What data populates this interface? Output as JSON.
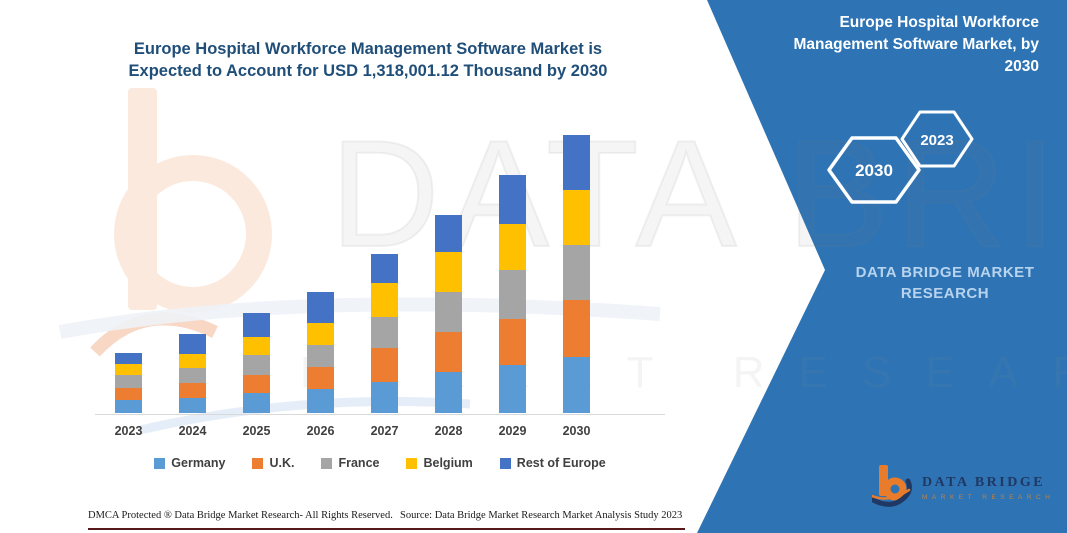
{
  "header": {
    "title_line1": "Europe Hospital Workforce Management Software Market is",
    "title_line2": "Expected to Account for USD 1,318,001.12 Thousand by 2030"
  },
  "chart_data": {
    "type": "bar",
    "stacked": true,
    "title": "Europe Hospital Workforce Management Software Market is Expected to Account for USD 1,318,001.12 Thousand by 2030",
    "unit": "USD Thousand",
    "categories": [
      "2023",
      "2024",
      "2025",
      "2026",
      "2027",
      "2028",
      "2029",
      "2030"
    ],
    "series": [
      {
        "name": "Germany",
        "color": "#5B9BD5",
        "values": [
          61600,
          72500,
          94000,
          112000,
          147000,
          194400,
          226100,
          265500
        ]
      },
      {
        "name": "U.K.",
        "color": "#ED7D31",
        "values": [
          55500,
          69700,
          87000,
          106000,
          161200,
          189600,
          221400,
          268800
        ]
      },
      {
        "name": "France",
        "color": "#A5A5A5",
        "values": [
          63100,
          71100,
          93000,
          105000,
          147000,
          189600,
          229000,
          260800
        ]
      },
      {
        "name": "Belgium",
        "color": "#FFC000",
        "values": [
          52100,
          67800,
          86000,
          103000,
          162600,
          189600,
          221400,
          260800
        ]
      },
      {
        "name": "Rest of Europe",
        "color": "#4472C4",
        "values": [
          53600,
          94900,
          114100,
          147700,
          134200,
          176800,
          230900,
          262101.12
        ]
      }
    ],
    "totals": [
      285900,
      376000,
      474100,
      573700,
      752000,
      940000,
      1128800,
      1318001.12
    ],
    "value_axis_visible": false,
    "legend_position": "bottom",
    "grid": false
  },
  "side_panel": {
    "accent_color": "#2E74B5",
    "title_lines": [
      "Europe Hospital Workforce",
      "Management Software Market, by",
      "2030"
    ],
    "hexagon_large": "2030",
    "hexagon_small": "2023",
    "brand_line1": "DATA BRIDGE MARKET",
    "brand_line2": "RESEARCH"
  },
  "watermark": {
    "text": "DATA BRIDGE",
    "text2": "MARKET RESEARCH"
  },
  "logo": {
    "name": "DATA BRIDGE",
    "tagline": "MARKET RESEARCH"
  },
  "footer": {
    "dmca": "DMCA Protected ® Data Bridge Market Research-  All Rights Reserved.",
    "source": "Source: Data Bridge Market Research  Market Analysis Study 2023"
  }
}
